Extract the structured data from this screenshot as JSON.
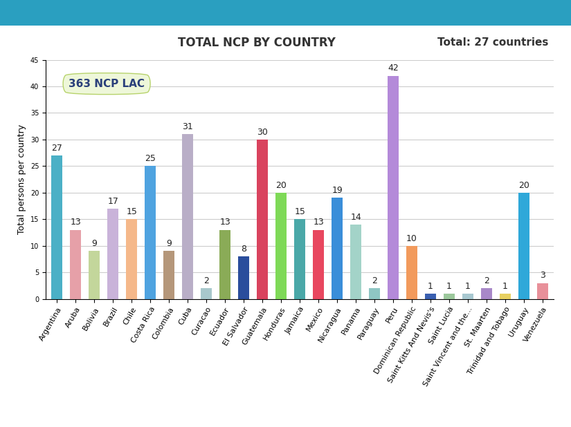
{
  "chart_data": {
    "type": "bar",
    "title": "TOTAL NCP BY COUNTRY",
    "subtitle": "Total: 27 countries",
    "annotation": "363 NCP LAC",
    "y_label": "Total persons per country",
    "categories": [
      "Argentina",
      "Aruba",
      "Bolivia",
      "Brazil",
      "Chile",
      "Costa Rica",
      "Colombia",
      "Cuba",
      "Curacao",
      "Ecuador",
      "El Salvador",
      "Guatemala",
      "Honduras",
      "Jamaica",
      "Mexico",
      "Nicaragua",
      "Panama",
      "Paraguay",
      "Peru",
      "Dominican Republic",
      "Saint Kitts And Nevis's",
      "Saint Lucia",
      "Saint Vincent and the...",
      "St. Maarten",
      "Trinidad and Tobago",
      "Uruguay",
      "Venezuela"
    ],
    "values": [
      27,
      13,
      9,
      17,
      15,
      25,
      9,
      31,
      2,
      13,
      8,
      30,
      20,
      15,
      13,
      19,
      14,
      2,
      42,
      10,
      1,
      1,
      1,
      2,
      1,
      20,
      3
    ],
    "colors": [
      "#4bb0c6",
      "#e6a0a8",
      "#c3d69b",
      "#c9b3d9",
      "#f5b88a",
      "#4fa3e0",
      "#b5977a",
      "#b9aec7",
      "#a8c8cc",
      "#8aab57",
      "#2a4d9c",
      "#d9435e",
      "#7ed957",
      "#4aa8a8",
      "#e8475f",
      "#3a8ed9",
      "#a3d3c8",
      "#8fc6c4",
      "#b48ad9",
      "#f29a5c",
      "#3a5fb0",
      "#9cc89c",
      "#a8c8d0",
      "#a888c8",
      "#e8d060",
      "#2fa8d9",
      "#e8909a"
    ],
    "ylim": [
      0,
      45
    ],
    "yticks": [
      0,
      5,
      10,
      15,
      20,
      25,
      30,
      35,
      40,
      45
    ],
    "grid": true,
    "data_labels": true
  }
}
